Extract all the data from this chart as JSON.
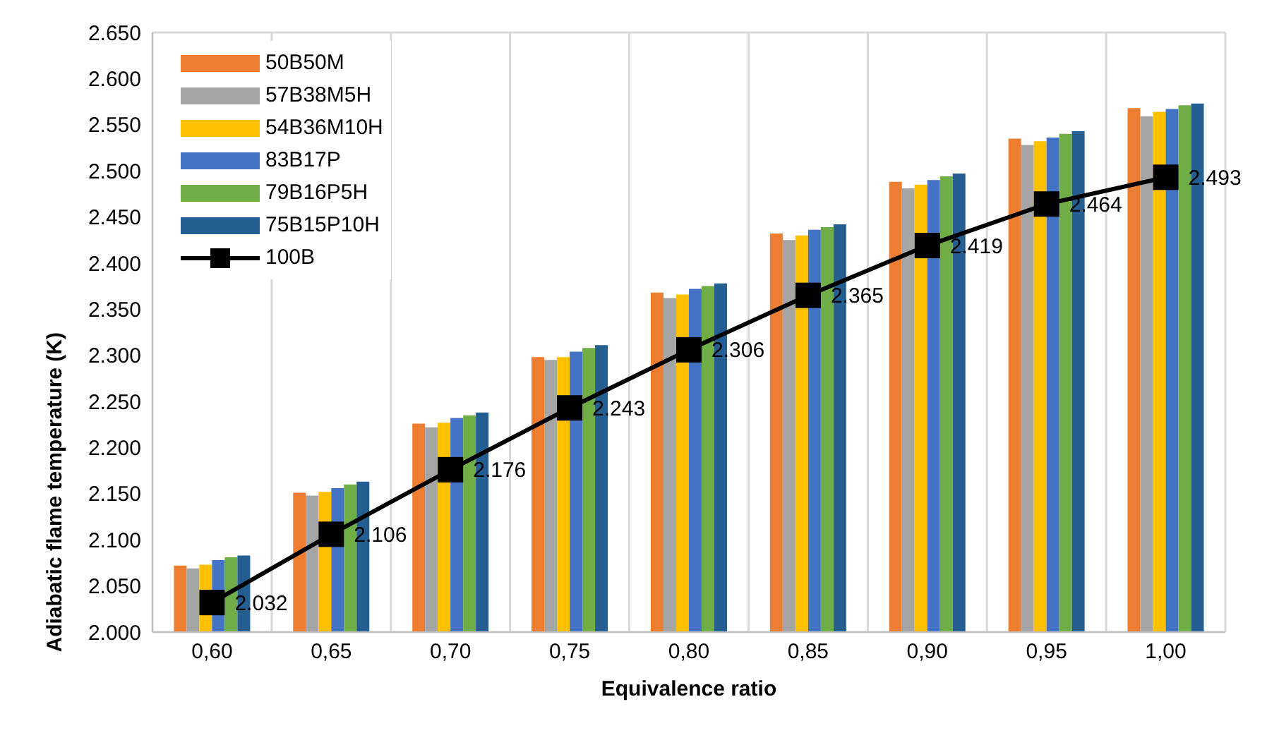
{
  "chart_data": {
    "type": "bar",
    "xlabel": "Equivalence ratio",
    "ylabel": "Adiabatic flame temperature (K)",
    "categories": [
      "0,60",
      "0,65",
      "0,70",
      "0,75",
      "0,80",
      "0,85",
      "0,90",
      "0,95",
      "1,00"
    ],
    "series": [
      {
        "name": "50B50M",
        "color": "#ed7d31",
        "values": [
          2072,
          2151,
          2226,
          2298,
          2368,
          2432,
          2488,
          2535,
          2568
        ]
      },
      {
        "name": "57B38M5H",
        "color": "#a5a5a5",
        "values": [
          2069,
          2148,
          2222,
          2295,
          2362,
          2425,
          2481,
          2528,
          2559
        ]
      },
      {
        "name": "54B36M10H",
        "color": "#ffc000",
        "values": [
          2073,
          2152,
          2227,
          2298,
          2366,
          2430,
          2485,
          2532,
          2564
        ]
      },
      {
        "name": "83B17P",
        "color": "#4472c4",
        "values": [
          2078,
          2156,
          2232,
          2304,
          2372,
          2436,
          2490,
          2536,
          2567
        ]
      },
      {
        "name": "79B16P5H",
        "color": "#70ad47",
        "values": [
          2081,
          2160,
          2235,
          2308,
          2375,
          2439,
          2494,
          2540,
          2571
        ]
      },
      {
        "name": "75B15P10H",
        "color": "#255e91",
        "values": [
          2083,
          2163,
          2238,
          2311,
          2378,
          2442,
          2497,
          2543,
          2573
        ]
      },
      {
        "name": "100B",
        "type": "line",
        "color": "#000000",
        "marker": "square",
        "values": [
          2032,
          2106,
          2176,
          2243,
          2306,
          2365,
          2419,
          2464,
          2493
        ],
        "value_labels": [
          "2.032",
          "2.106",
          "2.176",
          "2.243",
          "2.306",
          "2.365",
          "2.419",
          "2.464",
          "2.493"
        ]
      }
    ],
    "ylim": [
      2000,
      2650
    ],
    "yticks": [
      {
        "value": 2000,
        "label": "2.000"
      },
      {
        "value": 2050,
        "label": "2.050"
      },
      {
        "value": 2100,
        "label": "2.100"
      },
      {
        "value": 2150,
        "label": "2.150"
      },
      {
        "value": 2200,
        "label": "2.200"
      },
      {
        "value": 2250,
        "label": "2.250"
      },
      {
        "value": 2300,
        "label": "2.300"
      },
      {
        "value": 2350,
        "label": "2.350"
      },
      {
        "value": 2400,
        "label": "2.400"
      },
      {
        "value": 2450,
        "label": "2.450"
      },
      {
        "value": 2500,
        "label": "2.500"
      },
      {
        "value": 2550,
        "label": "2.550"
      },
      {
        "value": 2600,
        "label": "2.600"
      },
      {
        "value": 2650,
        "label": "2.650"
      }
    ],
    "grid": true,
    "legend": "top left"
  }
}
